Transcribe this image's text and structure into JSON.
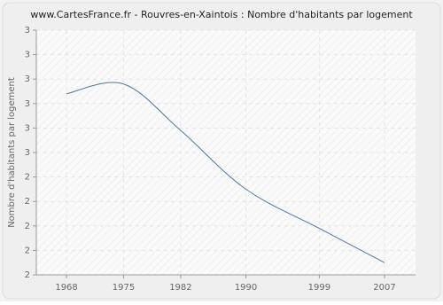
{
  "chart_data": {
    "type": "line",
    "title": "www.CartesFrance.fr - Rouvres-en-Xaintois : Nombre d'habitants par logement",
    "y_label": "Nombre d'habitants par logement",
    "x": [
      1968,
      1975,
      1982,
      1990,
      1999,
      2007
    ],
    "series": [
      {
        "name": "Nombre d'habitants par logement",
        "color": "#4e79a7",
        "values": [
          2.74,
          2.78,
          2.59,
          2.35,
          2.19,
          2.05
        ]
      }
    ],
    "xlim": [
      1964.3,
      2010.8
    ],
    "xticks": [
      1968,
      1975,
      1982,
      1990,
      1999,
      2007
    ],
    "ylim": [
      2.0,
      3.0
    ],
    "yticks": [
      {
        "value": 2.0,
        "label": "2"
      },
      {
        "value": 2.1,
        "label": "2"
      },
      {
        "value": 2.2,
        "label": "2"
      },
      {
        "value": 2.3,
        "label": "2"
      },
      {
        "value": 2.4,
        "label": "2"
      },
      {
        "value": 2.5,
        "label": "3"
      },
      {
        "value": 2.6,
        "label": "3"
      },
      {
        "value": 2.7,
        "label": "3"
      },
      {
        "value": 2.8,
        "label": "3"
      },
      {
        "value": 2.9,
        "label": "3"
      },
      {
        "value": 3.0,
        "label": "3"
      }
    ],
    "grid": true
  }
}
